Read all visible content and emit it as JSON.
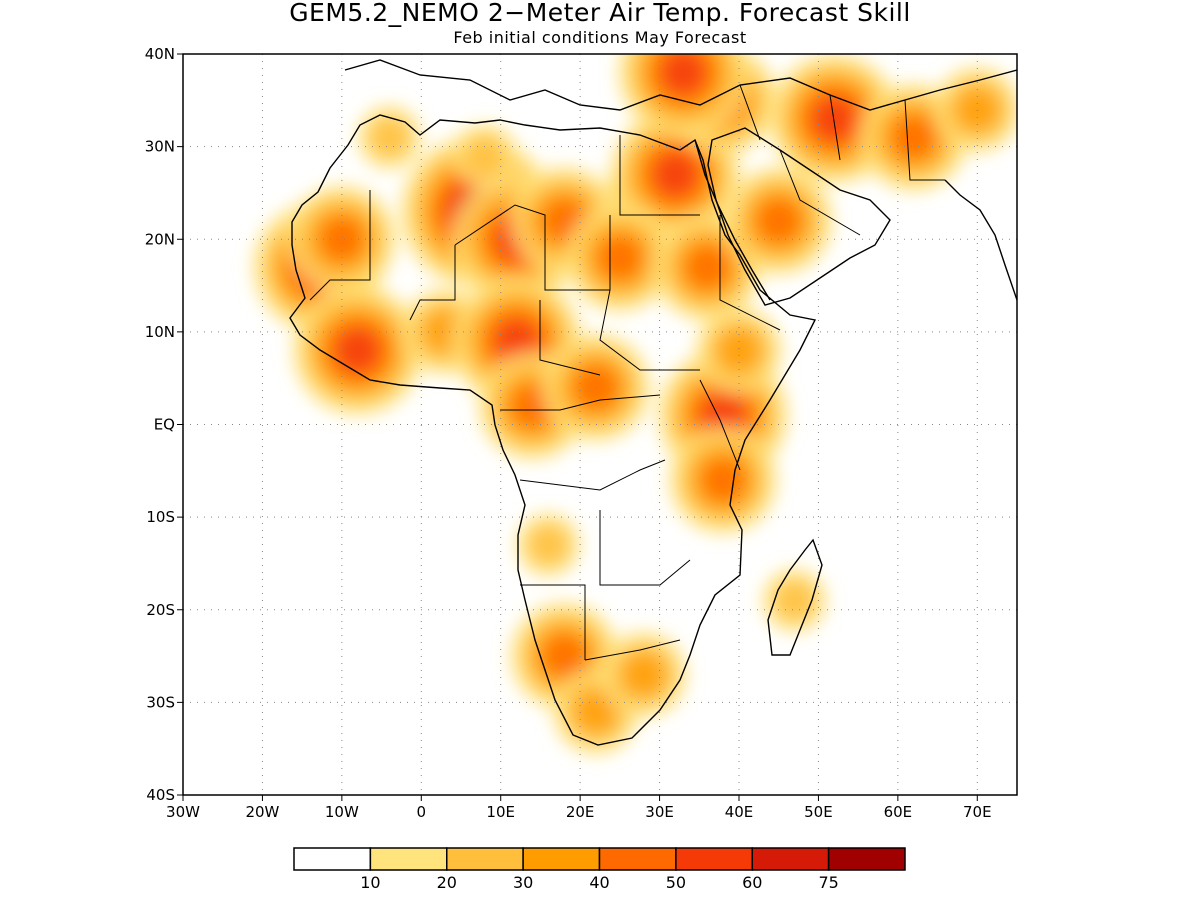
{
  "title": "GEM5.2_NEMO 2−Meter Air Temp. Forecast Skill",
  "subtitle": "Feb initial conditions  May Forecast",
  "map": {
    "lon_range": [
      -30,
      75
    ],
    "lat_range": [
      -40,
      40
    ],
    "x_ticks": [
      {
        "lon": -30,
        "label": "30W"
      },
      {
        "lon": -20,
        "label": "20W"
      },
      {
        "lon": -10,
        "label": "10W"
      },
      {
        "lon": 0,
        "label": "0"
      },
      {
        "lon": 10,
        "label": "10E"
      },
      {
        "lon": 20,
        "label": "20E"
      },
      {
        "lon": 30,
        "label": "30E"
      },
      {
        "lon": 40,
        "label": "40E"
      },
      {
        "lon": 50,
        "label": "50E"
      },
      {
        "lon": 60,
        "label": "60E"
      },
      {
        "lon": 70,
        "label": "70E"
      }
    ],
    "y_ticks": [
      {
        "lat": 40,
        "label": "40N"
      },
      {
        "lat": 30,
        "label": "30N"
      },
      {
        "lat": 20,
        "label": "20N"
      },
      {
        "lat": 10,
        "label": "10N"
      },
      {
        "lat": 0,
        "label": "EQ"
      },
      {
        "lat": -10,
        "label": "10S"
      },
      {
        "lat": -20,
        "label": "20S"
      },
      {
        "lat": -30,
        "label": "30S"
      },
      {
        "lat": -40,
        "label": "40S"
      }
    ],
    "grid": "dotted",
    "blobs": [
      {
        "lon": -13,
        "lat": 17,
        "level": 5
      },
      {
        "lon": -10,
        "lat": 20,
        "level": 4
      },
      {
        "lon": 7,
        "lat": 23,
        "level": 6
      },
      {
        "lon": 12,
        "lat": 20,
        "level": 5
      },
      {
        "lon": 18,
        "lat": 22,
        "level": 4
      },
      {
        "lon": 28,
        "lat": 24,
        "level": 3
      },
      {
        "lon": 32,
        "lat": 27,
        "level": 5
      },
      {
        "lon": 25,
        "lat": 18,
        "level": 4
      },
      {
        "lon": 36,
        "lat": 17,
        "level": 4
      },
      {
        "lon": -8,
        "lat": 8,
        "level": 5
      },
      {
        "lon": 3,
        "lat": 10,
        "level": 3
      },
      {
        "lon": 12,
        "lat": 9,
        "level": 5
      },
      {
        "lon": 14,
        "lat": 2,
        "level": 4
      },
      {
        "lon": 22,
        "lat": 4,
        "level": 4
      },
      {
        "lon": 38,
        "lat": 1,
        "level": 5
      },
      {
        "lon": 38,
        "lat": -6,
        "level": 4
      },
      {
        "lon": 40,
        "lat": 8,
        "level": 3
      },
      {
        "lon": 45,
        "lat": 22,
        "level": 4
      },
      {
        "lon": 52,
        "lat": 33,
        "level": 5
      },
      {
        "lon": 62,
        "lat": 31,
        "level": 4
      },
      {
        "lon": 70,
        "lat": 34,
        "level": 3
      },
      {
        "lon": 38,
        "lat": 35,
        "level": 4
      },
      {
        "lon": 33,
        "lat": 38,
        "level": 5
      },
      {
        "lon": 18,
        "lat": -25,
        "level": 4
      },
      {
        "lon": 22,
        "lat": -31,
        "level": 3
      },
      {
        "lon": 28,
        "lat": -27,
        "level": 3
      },
      {
        "lon": 47,
        "lat": -19,
        "level": 2
      },
      {
        "lon": 16,
        "lat": -13,
        "level": 2
      },
      {
        "lon": 8,
        "lat": 29,
        "level": 2
      },
      {
        "lon": -4,
        "lat": 31,
        "level": 2
      }
    ]
  },
  "colorbar": {
    "colors": [
      "#ffffff",
      "#ffe37c",
      "#ffbe3c",
      "#ff9c00",
      "#ff6a00",
      "#f53a08",
      "#d61a08",
      "#a00000"
    ],
    "labels": [
      "10",
      "20",
      "30",
      "40",
      "50",
      "60",
      "75"
    ]
  }
}
